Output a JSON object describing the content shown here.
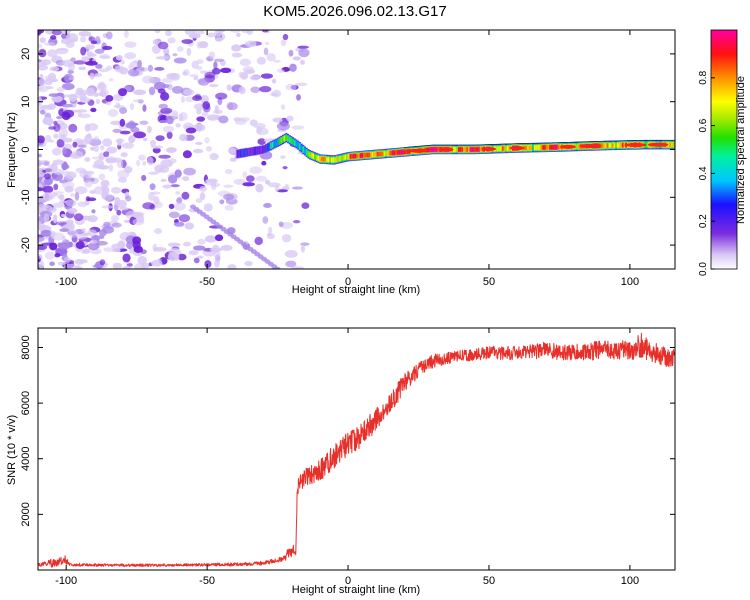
{
  "figure": {
    "title": "KOM5.2026.096.02.13.G17"
  },
  "colors": {
    "snr_line": "#e8302a",
    "ridge_purple": "#6a1fd8",
    "noise_light": "#d9c9f5",
    "noise_mid": "#a684ea",
    "noise_dark": "#6a1fd8"
  },
  "chart_data": [
    {
      "type": "heatmap",
      "title": "",
      "xlabel": "Height of straight line (km)",
      "ylabel": "Frequency (Hz)",
      "xlim": [
        -110,
        116
      ],
      "ylim": [
        -25,
        25
      ],
      "xticks": [
        -100,
        -50,
        0,
        50,
        100
      ],
      "yticks": [
        -20,
        -10,
        0,
        10,
        20
      ],
      "colorbar": {
        "label": "Normalized spectral amplitude",
        "range": [
          0,
          1
        ],
        "ticks": [
          "0.0",
          "0.2",
          "0.4",
          "0.6",
          "0.8"
        ],
        "tick_values": [
          0,
          0.2,
          0.4,
          0.6,
          0.8
        ]
      },
      "ridge": {
        "description_points": [
          {
            "x": -40,
            "y": -1,
            "amp": 0.3
          },
          {
            "x": -30,
            "y": 0,
            "amp": 0.4
          },
          {
            "x": -25,
            "y": 1.5,
            "amp": 0.5
          },
          {
            "x": -22,
            "y": 2.5,
            "amp": 0.6
          },
          {
            "x": -18,
            "y": 1,
            "amp": 0.55
          },
          {
            "x": -14,
            "y": -1,
            "amp": 0.6
          },
          {
            "x": -10,
            "y": -2,
            "amp": 0.7
          },
          {
            "x": -5,
            "y": -2.2,
            "amp": 0.8
          },
          {
            "x": 0,
            "y": -1.5,
            "amp": 0.85
          },
          {
            "x": 10,
            "y": -1,
            "amp": 0.9
          },
          {
            "x": 20,
            "y": -0.5,
            "amp": 0.95
          },
          {
            "x": 30,
            "y": 0,
            "amp": 1.0
          },
          {
            "x": 45,
            "y": 0,
            "amp": 0.9
          },
          {
            "x": 60,
            "y": 0.3,
            "amp": 0.8
          },
          {
            "x": 75,
            "y": 0.5,
            "amp": 0.9
          },
          {
            "x": 90,
            "y": 0.8,
            "amp": 0.85
          },
          {
            "x": 105,
            "y": 1,
            "amp": 0.8
          },
          {
            "x": 116,
            "y": 1,
            "amp": 0.75
          }
        ],
        "noise_region_x": [
          -110,
          -20
        ]
      }
    },
    {
      "type": "line",
      "title": "",
      "xlabel": "Height of straight line (km)",
      "ylabel": "SNR (10 * v/v)",
      "xlim": [
        -110,
        116
      ],
      "ylim": [
        0,
        8700
      ],
      "xticks": [
        -100,
        -50,
        0,
        50,
        100
      ],
      "yticks": [
        2000,
        4000,
        6000,
        8000
      ],
      "series": [
        {
          "name": "SNR",
          "x": [
            -110,
            -105,
            -100,
            -90,
            -80,
            -70,
            -60,
            -50,
            -40,
            -30,
            -25,
            -20,
            -18.5,
            -18,
            -15,
            -10,
            -5,
            0,
            5,
            10,
            15,
            20,
            25,
            30,
            40,
            50,
            60,
            70,
            80,
            90,
            100,
            105,
            110,
            116
          ],
          "values": [
            200,
            250,
            200,
            180,
            170,
            170,
            180,
            190,
            200,
            250,
            350,
            500,
            600,
            3000,
            3300,
            3600,
            4100,
            4500,
            4900,
            5400,
            6000,
            6700,
            7200,
            7500,
            7700,
            7800,
            7800,
            7900,
            7800,
            7900,
            7900,
            8100,
            7700,
            7600
          ],
          "noise_amplitude": [
            60,
            150,
            60,
            50,
            50,
            50,
            50,
            50,
            60,
            70,
            80,
            90,
            100,
            300,
            350,
            400,
            450,
            450,
            450,
            400,
            400,
            350,
            250,
            250,
            200,
            250,
            250,
            300,
            300,
            350,
            350,
            500,
            400,
            350
          ]
        }
      ]
    }
  ]
}
